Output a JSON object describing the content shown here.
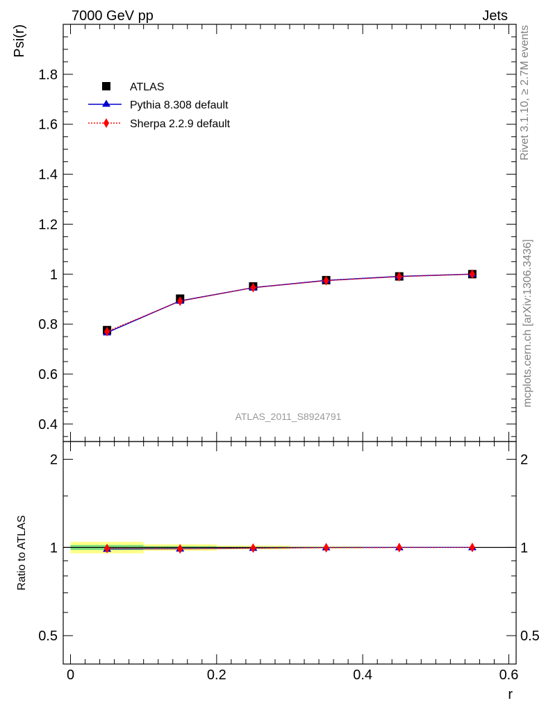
{
  "header": {
    "left": "7000 GeV pp",
    "right": "Jets"
  },
  "side_labels": {
    "rivet": "Rivet 3.1.10, ≥ 2.7M events",
    "mcplots": "mcplots.cern.ch [arXiv:1306.3436]"
  },
  "analysis_label": "ATLAS_2011_S8924791",
  "colors": {
    "atlas": "#000000",
    "pythia": "#0000cc",
    "sherpa": "#ff0000",
    "band_inner": "#7fe07f",
    "band_outer": "#ffff88"
  },
  "chart_data": [
    {
      "type": "line",
      "panel": "main",
      "ylabel": "Psi(r)",
      "xlim": [
        -0.01,
        0.61
      ],
      "ylim": [
        0.33,
        2.0
      ],
      "yticks": [
        0.4,
        0.6,
        0.8,
        1,
        1.2,
        1.4,
        1.6,
        1.8
      ],
      "ytick_labels": [
        "0.4",
        "0.6",
        "0.8",
        "1",
        "1.2",
        "1.4",
        "1.6",
        "1.8"
      ],
      "x": [
        0.05,
        0.15,
        0.25,
        0.35,
        0.45,
        0.55
      ],
      "legend_position": "top-left",
      "series": [
        {
          "name": "ATLAS",
          "marker": "square",
          "values": [
            0.776,
            0.902,
            0.951,
            0.976,
            0.991,
            1.0
          ]
        },
        {
          "name": "Pythia 8.308 default",
          "marker": "triangle",
          "line": "solid",
          "values": [
            0.766,
            0.893,
            0.946,
            0.975,
            0.991,
            1.0
          ]
        },
        {
          "name": "Sherpa 2.2.9 default",
          "marker": "diamond",
          "line": "dotted",
          "values": [
            0.77,
            0.892,
            0.946,
            0.974,
            0.99,
            1.0
          ]
        }
      ]
    },
    {
      "type": "line",
      "panel": "ratio",
      "ylabel": "Ratio to ATLAS",
      "xlabel": "r",
      "xlim": [
        -0.01,
        0.61
      ],
      "ylim": [
        0.4,
        2.3
      ],
      "yticks": [
        0.5,
        1,
        2
      ],
      "ytick_labels": [
        "0.5",
        "1",
        "2"
      ],
      "xticks": [
        0,
        0.2,
        0.4,
        0.6
      ],
      "xtick_labels": [
        "0",
        "0.2",
        "0.4",
        "0.6"
      ],
      "x": [
        0.05,
        0.15,
        0.25,
        0.35,
        0.45,
        0.55
      ],
      "band_edges": [
        0,
        0.1,
        0.2,
        0.3,
        0.4,
        0.5,
        0.6
      ],
      "band_inner": [
        0.02,
        0.01,
        0.005,
        0.003,
        0.002,
        0.001
      ],
      "band_outer": [
        0.045,
        0.025,
        0.015,
        0.008,
        0.004,
        0.002
      ],
      "series": [
        {
          "name": "Pythia 8.308 default",
          "marker": "triangle",
          "values": [
            0.988,
            0.99,
            0.995,
            0.999,
            1.0,
            1.0
          ]
        },
        {
          "name": "Sherpa 2.2.9 default",
          "marker": "diamond",
          "values": [
            0.992,
            0.989,
            0.995,
            0.998,
            0.999,
            1.0
          ]
        }
      ]
    }
  ]
}
